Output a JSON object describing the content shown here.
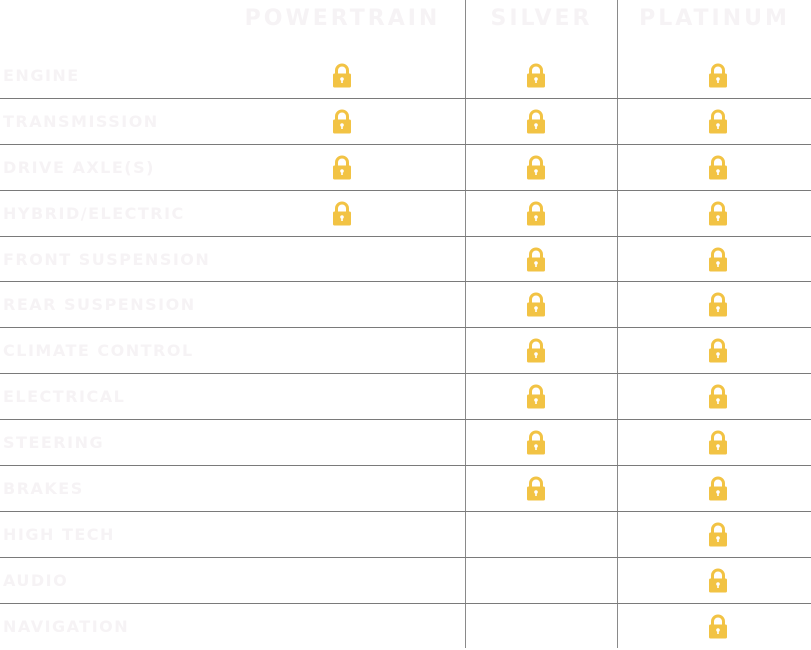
{
  "columns": [
    "POWERTRAIN",
    "SILVER",
    "PLATINUM"
  ],
  "lock_color": "#f2c344",
  "text_color": "#f6f3f5",
  "rows": [
    {
      "label": "ENGINE",
      "covered": [
        true,
        true,
        true
      ]
    },
    {
      "label": "TRANSMISSION",
      "covered": [
        true,
        true,
        true
      ]
    },
    {
      "label": "DRIVE AXLE(S)",
      "covered": [
        true,
        true,
        true
      ]
    },
    {
      "label": "HYBRID/ELECTRIC",
      "covered": [
        true,
        true,
        true
      ]
    },
    {
      "label": "FRONT SUSPENSION",
      "covered": [
        false,
        true,
        true
      ]
    },
    {
      "label": "REAR SUSPENSION",
      "covered": [
        false,
        true,
        true
      ]
    },
    {
      "label": "CLIMATE CONTROL",
      "covered": [
        false,
        true,
        true
      ]
    },
    {
      "label": "ELECTRICAL",
      "covered": [
        false,
        true,
        true
      ]
    },
    {
      "label": "STEERING",
      "covered": [
        false,
        true,
        true
      ]
    },
    {
      "label": "BRAKES",
      "covered": [
        false,
        true,
        true
      ]
    },
    {
      "label": "HIGH TECH",
      "covered": [
        false,
        false,
        true
      ]
    },
    {
      "label": "AUDIO",
      "covered": [
        false,
        false,
        true
      ]
    },
    {
      "label": "NAVIGATION",
      "covered": [
        false,
        false,
        true
      ]
    }
  ]
}
